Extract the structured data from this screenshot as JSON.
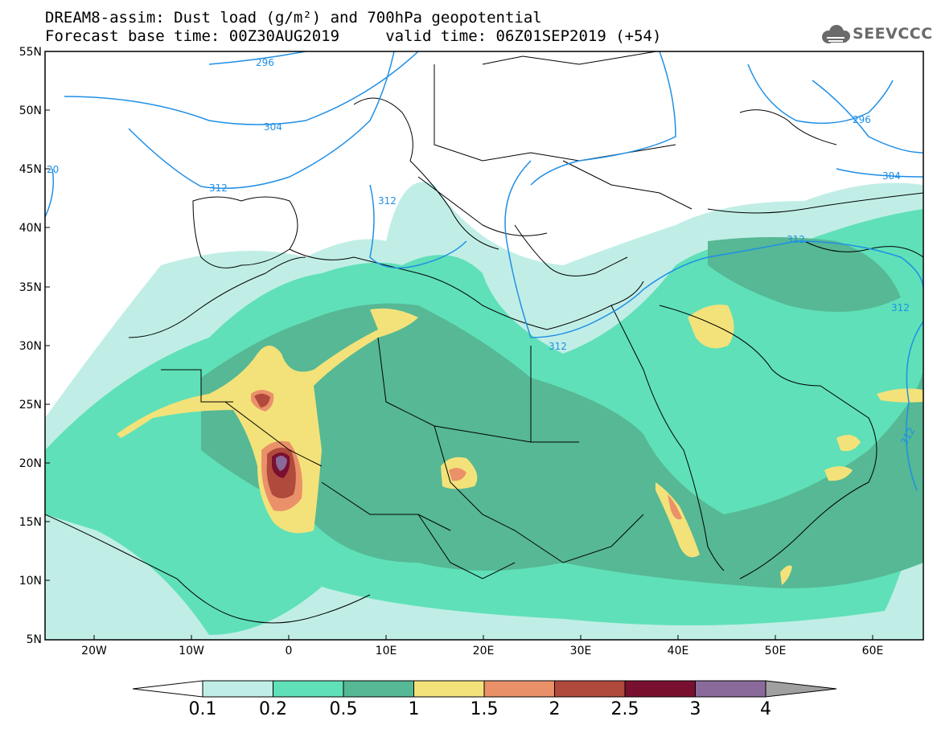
{
  "title": {
    "line1": "DREAM8-assim: Dust load (g/m²) and 700hPa geopotential",
    "line2": "Forecast base time: 00Z30AUG2019     valid time: 06Z01SEP2019 (+54)"
  },
  "logo": {
    "text": "SEEVCCC",
    "icon": "cloud-icon"
  },
  "map": {
    "lon_range": [
      -25,
      65
    ],
    "lat_range": [
      5,
      55
    ],
    "lat_ticks": [
      "55N",
      "50N",
      "45N",
      "40N",
      "35N",
      "30N",
      "25N",
      "20N",
      "15N",
      "10N",
      "5N"
    ],
    "lon_ticks": [
      "20W",
      "10W",
      "0",
      "10E",
      "20E",
      "30E",
      "40E",
      "50E",
      "60E"
    ],
    "contour_color": "#1f8fe6",
    "contour_labels": [
      "296",
      "304",
      "312",
      "20",
      "312",
      "296",
      "304",
      "312",
      "312",
      "312",
      "312"
    ]
  },
  "legend": {
    "labels": [
      "0.1",
      "0.2",
      "0.5",
      "1",
      "1.5",
      "2",
      "2.5",
      "3",
      "4"
    ],
    "colors": [
      "#c0eee6",
      "#5fe0b8",
      "#56b894",
      "#f3e27a",
      "#ea916a",
      "#b04a3c",
      "#7a1030",
      "#8a6a9a"
    ],
    "under_color": "#ffffff",
    "over_color": "#a0a0a0"
  }
}
